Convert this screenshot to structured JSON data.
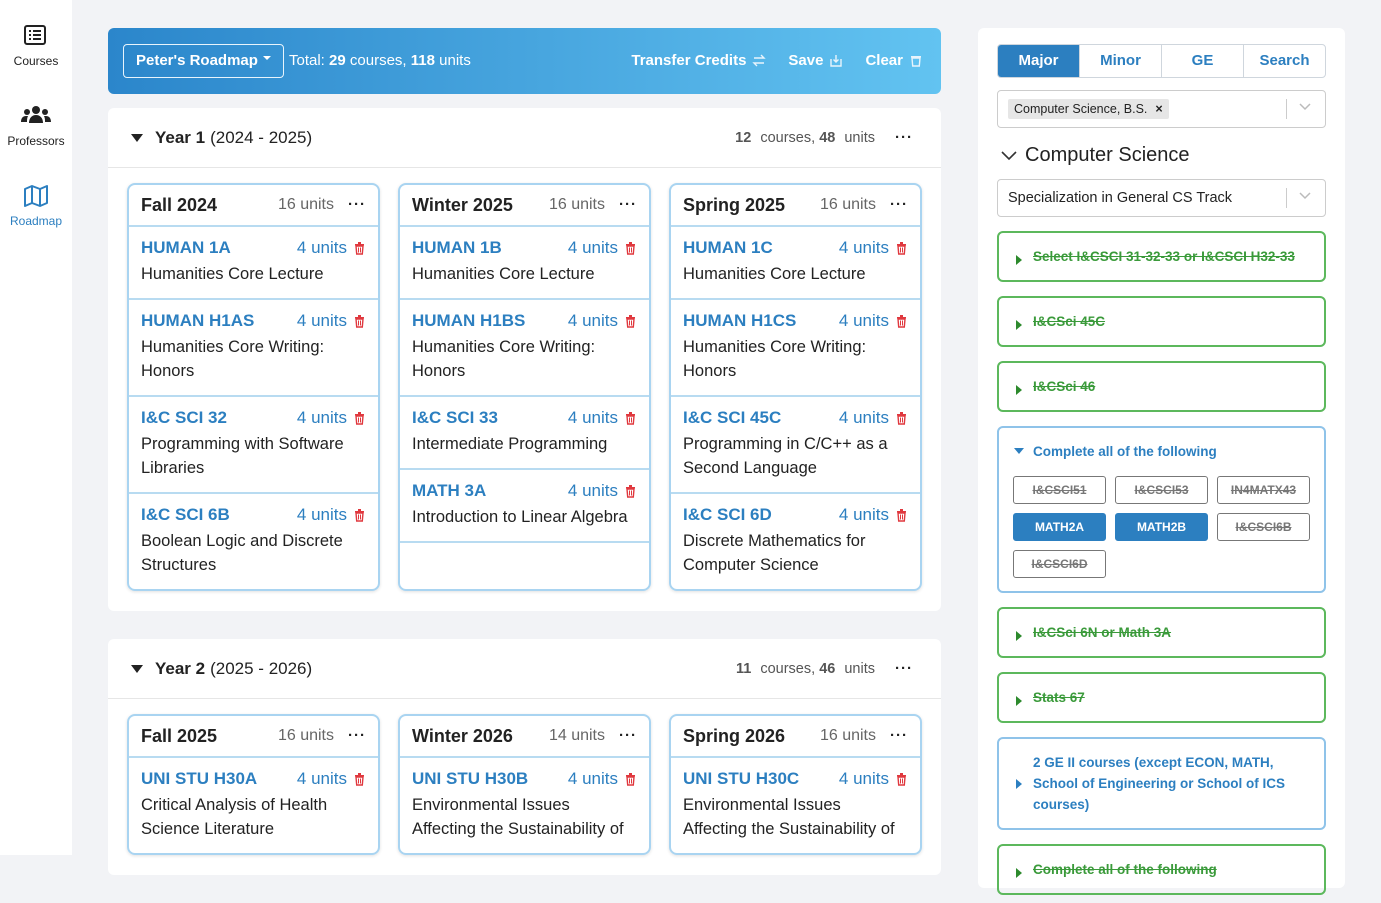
{
  "sidebar": [
    {
      "label": "Courses"
    },
    {
      "label": "Professors"
    },
    {
      "label": "Roadmap"
    }
  ],
  "header": {
    "roadmap": "Peter's Roadmap",
    "total_label": "Total:",
    "courses": "29",
    "courses_label": "courses,",
    "units": "118",
    "units_label": "units",
    "actions": [
      "Transfer Credits",
      "Save",
      "Clear"
    ]
  },
  "years": [
    {
      "name": "Year 1",
      "range": "(2024 - 2025)",
      "courses": "12",
      "courses_label": "courses,",
      "units": "48",
      "units_label": "units",
      "quarters": [
        {
          "name": "Fall 2024",
          "units": "16 units",
          "courses": [
            {
              "code": "HUMAN 1A",
              "units": "4 units",
              "title": "Humanities Core Lecture"
            },
            {
              "code": "HUMAN H1AS",
              "units": "4 units",
              "title": "Humanities Core Writing: Honors"
            },
            {
              "code": "I&C SCI 32",
              "units": "4 units",
              "title": "Programming with Software Libraries"
            },
            {
              "code": "I&C SCI 6B",
              "units": "4 units",
              "title": "Boolean Logic and Discrete Structures"
            }
          ]
        },
        {
          "name": "Winter 2025",
          "units": "16 units",
          "courses": [
            {
              "code": "HUMAN 1B",
              "units": "4 units",
              "title": "Humanities Core Lecture"
            },
            {
              "code": "HUMAN H1BS",
              "units": "4 units",
              "title": "Humanities Core Writing: Honors"
            },
            {
              "code": "I&C SCI 33",
              "units": "4 units",
              "title": "Intermediate Programming"
            },
            {
              "code": "MATH 3A",
              "units": "4 units",
              "title": "Introduction to Linear Algebra"
            }
          ]
        },
        {
          "name": "Spring 2025",
          "units": "16 units",
          "courses": [
            {
              "code": "HUMAN 1C",
              "units": "4 units",
              "title": "Humanities Core Lecture"
            },
            {
              "code": "HUMAN H1CS",
              "units": "4 units",
              "title": "Humanities Core Writing: Honors"
            },
            {
              "code": "I&C SCI 45C",
              "units": "4 units",
              "title": "Programming in C/C++ as a Second Language"
            },
            {
              "code": "I&C SCI 6D",
              "units": "4 units",
              "title": "Discrete Mathematics for Computer Science"
            }
          ]
        }
      ]
    },
    {
      "name": "Year 2",
      "range": "(2025 - 2026)",
      "courses": "11",
      "courses_label": "courses,",
      "units": "46",
      "units_label": "units",
      "quarters": [
        {
          "name": "Fall 2025",
          "units": "16 units",
          "courses": [
            {
              "code": "UNI STU H30A",
              "units": "4 units",
              "title": "Critical Analysis of Health Science Literature"
            }
          ]
        },
        {
          "name": "Winter 2026",
          "units": "14 units",
          "courses": [
            {
              "code": "UNI STU H30B",
              "units": "4 units",
              "title": "Environmental Issues Affecting the Sustainability of"
            }
          ]
        },
        {
          "name": "Spring 2026",
          "units": "16 units",
          "courses": [
            {
              "code": "UNI STU H30C",
              "units": "4 units",
              "title": "Environmental Issues Affecting the Sustainability of"
            }
          ]
        }
      ]
    }
  ],
  "requirements": {
    "tabs": [
      "Major",
      "Minor",
      "GE",
      "Search"
    ],
    "active_tab": 0,
    "major": "Computer Science, B.S.",
    "heading": "Computer Science",
    "specialization": "Specialization in General CS Track",
    "groups": [
      {
        "label": "Select I&CSCI 31-32-33 or I&CSCI H32-33",
        "status": "done"
      },
      {
        "label": "I&CSci 45C",
        "status": "done"
      },
      {
        "label": "I&CSci 46",
        "status": "done"
      },
      {
        "label": "Complete all of the following",
        "status": "open",
        "courses": [
          {
            "label": "I&CSCI51",
            "status": "done"
          },
          {
            "label": "I&CSCI53",
            "status": "done"
          },
          {
            "label": "IN4MATX43",
            "status": "done"
          },
          {
            "label": "MATH2A",
            "status": "selected"
          },
          {
            "label": "MATH2B",
            "status": "selected"
          },
          {
            "label": "I&CSCI6B",
            "status": "done"
          },
          {
            "label": "I&CSCI6D",
            "status": "done"
          }
        ]
      },
      {
        "label": "I&CSci 6N or Math 3A",
        "status": "done"
      },
      {
        "label": "Stats 67",
        "status": "done"
      },
      {
        "label": "2 GE II courses (except ECON, MATH, School of Engineering or School of ICS courses)",
        "status": "pending"
      },
      {
        "label": "Complete all of the following",
        "status": "done"
      }
    ]
  }
}
